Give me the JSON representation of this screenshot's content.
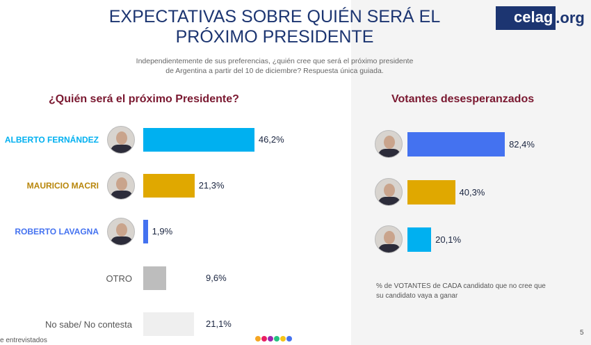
{
  "header": {
    "title": "EXPECTATIVAS SOBRE QUIÉN SERÁ EL PRÓXIMO PRESIDENTE",
    "subtitle": "Independientemente de sus preferencias, ¿quién cree que será el próximo presidente de Argentina a partir del 10 de diciembre? Respuesta única guiada.",
    "logo_main": "celag",
    "logo_suffix": ".org"
  },
  "left": {
    "heading": "¿Quién será el próximo Presidente?",
    "rows": [
      {
        "label": "ALBERTO FERNÁNDEZ",
        "value": 46.2,
        "display": "46,2%",
        "color": "#00b0f0",
        "label_color": "#00b0f0",
        "photo": true
      },
      {
        "label": "MAURICIO MACRI",
        "value": 21.3,
        "display": "21,3%",
        "color": "#e0a800",
        "label_color": "#b8860b",
        "photo": true
      },
      {
        "label": "ROBERTO LAVAGNA",
        "value": 1.9,
        "display": "1,9%",
        "color": "#4472f0",
        "label_color": "#4472f0",
        "photo": true
      },
      {
        "label": "OTRO",
        "value": 9.6,
        "display": "9,6%",
        "color": "#bdbdbd",
        "label_color": "#555555",
        "photo": false
      },
      {
        "label": "No sabe/ No contesta",
        "value": 21.1,
        "display": "21,1%",
        "color": "#efefef",
        "label_color": "#555555",
        "photo": false
      }
    ]
  },
  "right": {
    "heading": "Votantes desesperanzados",
    "rows": [
      {
        "value": 82.4,
        "display": "82,4%",
        "color": "#4472f0"
      },
      {
        "value": 40.3,
        "display": "40,3%",
        "color": "#e0a800"
      },
      {
        "value": 20.1,
        "display": "20,1%",
        "color": "#00b0f0"
      }
    ],
    "note": "% de VOTANTES de CADA candidato que no cree que su candidato vaya a ganar"
  },
  "footer": {
    "text": "e entrevistados",
    "page": "5",
    "dots": [
      "#f5a623",
      "#e91e63",
      "#9c27b0",
      "#26c281",
      "#f5c518",
      "#4472f0"
    ]
  }
}
